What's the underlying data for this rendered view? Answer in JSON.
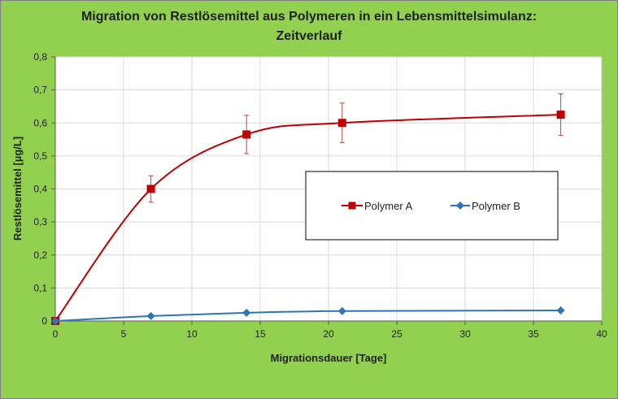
{
  "chart_data": {
    "type": "line",
    "title_lines": [
      "Migration von Restlösemittel aus Polymeren in ein Lebensmittelsimulanz:",
      "Zeitverlauf"
    ],
    "xlabel": "Migrationsdauer [Tage]",
    "ylabel": "Restlösemittel [µg/L]",
    "xlim": [
      0,
      40
    ],
    "ylim": [
      0,
      0.8
    ],
    "x_ticks": [
      {
        "value": 0,
        "label": "0"
      },
      {
        "value": 5,
        "label": "5"
      },
      {
        "value": 10,
        "label": "10"
      },
      {
        "value": 15,
        "label": "15"
      },
      {
        "value": 20,
        "label": "20"
      },
      {
        "value": 25,
        "label": "25"
      },
      {
        "value": 30,
        "label": "30"
      },
      {
        "value": 35,
        "label": "35"
      },
      {
        "value": 40,
        "label": "40"
      }
    ],
    "y_ticks": [
      {
        "value": 0,
        "label": "0"
      },
      {
        "value": 0.1,
        "label": "0,1"
      },
      {
        "value": 0.2,
        "label": "0,2"
      },
      {
        "value": 0.3,
        "label": "0,3"
      },
      {
        "value": 0.4,
        "label": "0,4"
      },
      {
        "value": 0.5,
        "label": "0,5"
      },
      {
        "value": 0.6,
        "label": "0,6"
      },
      {
        "value": 0.7,
        "label": "0,7"
      },
      {
        "value": 0.8,
        "label": "0,8"
      }
    ],
    "grid": true,
    "legend_position": "center-right",
    "series": [
      {
        "name": "Polymer A",
        "color": "#c00000",
        "marker": "square",
        "x": [
          0,
          7,
          14,
          21,
          37
        ],
        "y": [
          0,
          0.4,
          0.565,
          0.6,
          0.625
        ],
        "error": [
          0,
          0.04,
          0.058,
          0.06,
          0.063
        ]
      },
      {
        "name": "Polymer B",
        "color": "#2e75b6",
        "marker": "diamond",
        "x": [
          0,
          7,
          14,
          21,
          37
        ],
        "y": [
          0,
          0.015,
          0.025,
          0.03,
          0.032
        ],
        "error": [
          0,
          0,
          0,
          0,
          0
        ]
      }
    ]
  }
}
